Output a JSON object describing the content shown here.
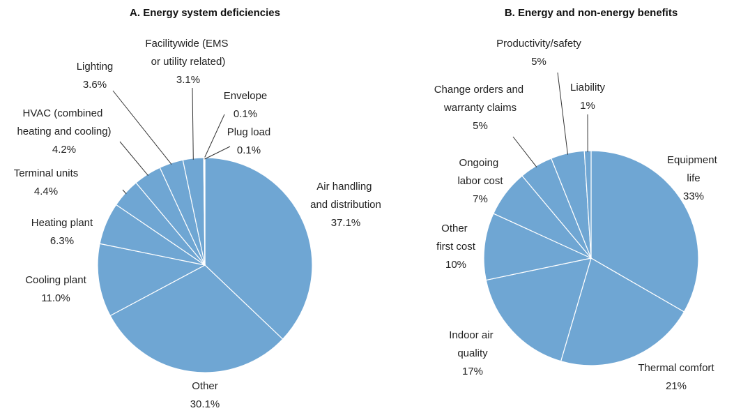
{
  "chart_data": [
    {
      "type": "pie",
      "title": "A. Energy system deficiencies",
      "color": "#6fa6d3",
      "categories": [
        "Air handling and distribution",
        "Other",
        "Cooling plant",
        "Heating plant",
        "Terminal units",
        "HVAC (combined heating and cooling)",
        "Lighting",
        "Facilitywide (EMS or utility related)",
        "Envelope",
        "Plug load"
      ],
      "values": [
        37.1,
        30.1,
        11.0,
        6.3,
        4.4,
        4.2,
        3.6,
        3.1,
        0.1,
        0.1
      ],
      "value_labels": [
        "37.1%",
        "30.1%",
        "11.0%",
        "6.3%",
        "4.4%",
        "4.2%",
        "3.6%",
        "3.1%",
        "0.1%",
        "0.1%"
      ]
    },
    {
      "type": "pie",
      "title": "B. Energy and non-energy benefits",
      "color": "#6fa6d3",
      "categories": [
        "Equipment life",
        "Thermal comfort",
        "Indoor air quality",
        "Other first cost",
        "Ongoing labor cost",
        "Change orders and warranty claims",
        "Productivity/safety",
        "Liability"
      ],
      "values": [
        33,
        21,
        17,
        10,
        7,
        5,
        5,
        1
      ],
      "value_labels": [
        "33%",
        "21%",
        "17%",
        "10%",
        "7%",
        "5%",
        "5%",
        "1%"
      ]
    }
  ]
}
